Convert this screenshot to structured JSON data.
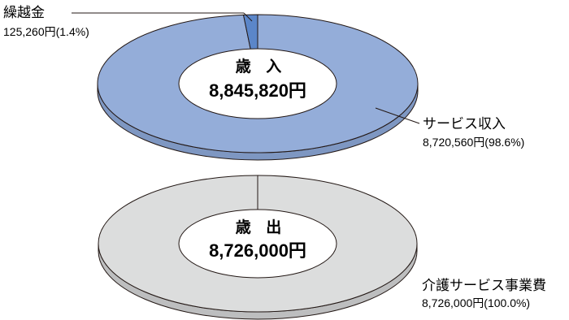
{
  "chart_data": [
    {
      "type": "pie",
      "title": "歳 入",
      "total_label": "8,845,820円",
      "total": 8845820,
      "unit": "円",
      "slices": [
        {
          "name": "サービス収入",
          "value": 8720560,
          "percent": 98.6,
          "value_label": "8,720,560円(98.6%)",
          "color": "#94add9"
        },
        {
          "name": "繰越金",
          "value": 125260,
          "percent": 1.4,
          "value_label": "125,260円(1.4%)",
          "color": "#5b86c9"
        }
      ]
    },
    {
      "type": "pie",
      "title": "歳 出",
      "total_label": "8,726,000円",
      "total": 8726000,
      "unit": "円",
      "slices": [
        {
          "name": "介護サービス事業費",
          "value": 8726000,
          "percent": 100.0,
          "value_label": "8,726,000円(100.0%)",
          "color": "#dcdddd"
        }
      ]
    }
  ],
  "colors": {
    "revenue_side": "#7e97c2",
    "expense_side": "#bdbebf",
    "outline": "#231815",
    "center_fill": "#ffffff"
  }
}
